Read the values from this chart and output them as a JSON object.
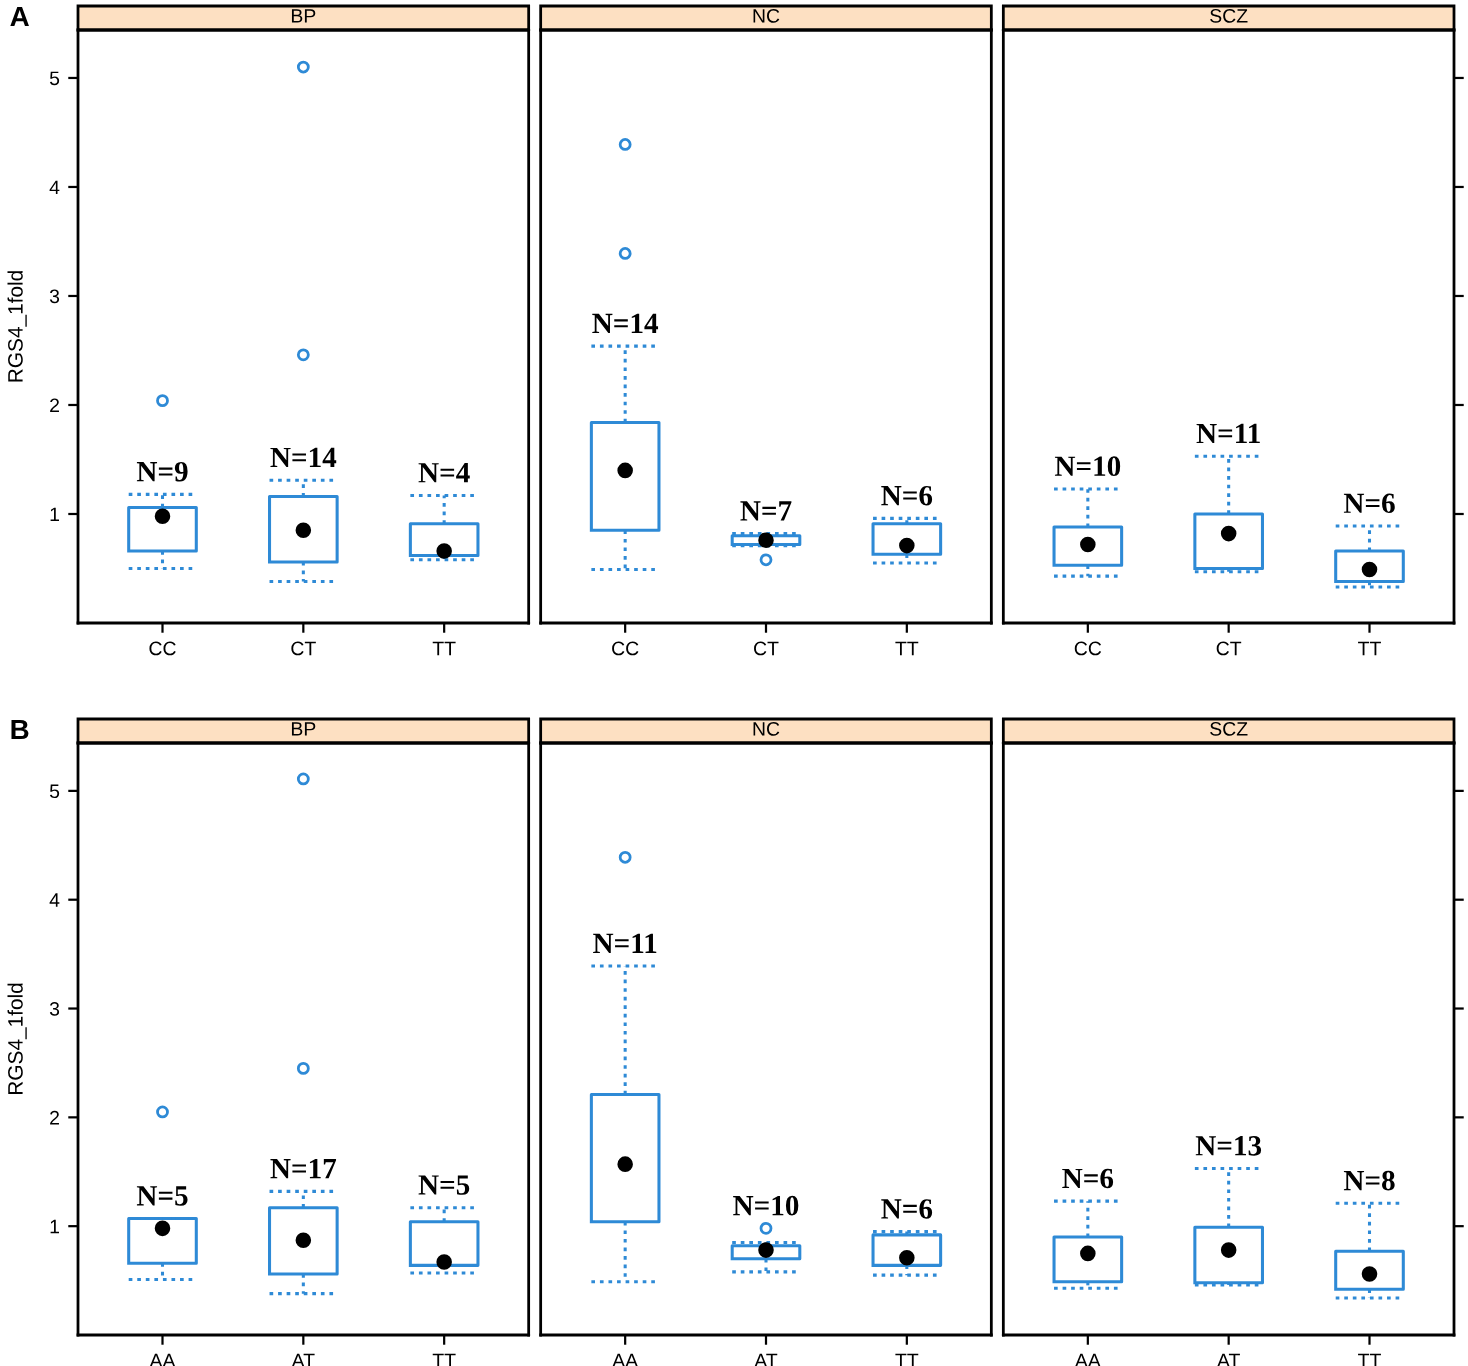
{
  "chart_data": [
    {
      "type": "box",
      "title": "BP",
      "ylabel": "RGS4_1fold",
      "categories": [
        "CC",
        "CT",
        "TT"
      ],
      "ylim": [
        0.0,
        5.44
      ],
      "yticks": [
        1,
        2,
        3,
        4,
        5
      ],
      "color": "#2e8ad6",
      "annotations": [
        "A",
        {
          "text": "N=9",
          "x": "CC",
          "y": 1.18
        },
        {
          "text": "N=14",
          "x": "CT",
          "y": 1.31
        },
        {
          "text": "N=4",
          "x": "TT",
          "y": 1.17
        }
      ],
      "boxes": [
        {
          "low": 0.5,
          "q1": 0.66,
          "median": 0.98,
          "q3": 1.06,
          "high": 1.18,
          "outliers": [
            2.04
          ]
        },
        {
          "low": 0.38,
          "q1": 0.56,
          "median": 0.85,
          "q3": 1.16,
          "high": 1.31,
          "outliers": [
            2.46,
            5.1
          ]
        },
        {
          "low": 0.58,
          "q1": 0.62,
          "median": 0.66,
          "q3": 0.91,
          "high": 1.17
        }
      ]
    },
    {
      "type": "box",
      "title": "NC",
      "categories": [
        "CC",
        "CT",
        "TT"
      ],
      "ylim": [
        0.0,
        5.44
      ],
      "yticks": [
        1,
        2,
        3,
        4,
        5
      ],
      "tick_labels": "x",
      "color": "#2e8ad6",
      "annotations": [
        {
          "text": "N=14",
          "x": "CC",
          "y": 2.54
        },
        {
          "text": "N=7",
          "x": "CT",
          "y": 0.82
        },
        {
          "text": "N=6",
          "x": "TT",
          "y": 0.96
        }
      ],
      "boxes": [
        {
          "low": 0.49,
          "q1": 0.85,
          "median": 1.4,
          "q3": 1.84,
          "high": 2.54,
          "outliers": [
            3.39,
            4.39
          ]
        },
        {
          "low": 0.71,
          "q1": 0.72,
          "median": 0.76,
          "q3": 0.8,
          "high": 0.82,
          "outliers": [
            0.58
          ]
        },
        {
          "low": 0.55,
          "q1": 0.63,
          "median": 0.71,
          "q3": 0.91,
          "high": 0.96
        }
      ]
    },
    {
      "type": "box",
      "title": "SCZ",
      "categories": [
        "CC",
        "CT",
        "TT"
      ],
      "ylim": [
        0.0,
        5.44
      ],
      "yticks": [
        1,
        2,
        3,
        4,
        5
      ],
      "tick_labels": "x",
      "color": "#2e8ad6",
      "annotations": [
        {
          "text": "N=10",
          "x": "CC",
          "y": 1.23
        },
        {
          "text": "N=11",
          "x": "CT",
          "y": 1.53
        },
        {
          "text": "N=6",
          "x": "TT",
          "y": 0.89
        }
      ],
      "boxes": [
        {
          "low": 0.43,
          "q1": 0.53,
          "median": 0.72,
          "q3": 0.88,
          "high": 1.23
        },
        {
          "low": 0.47,
          "q1": 0.5,
          "median": 0.82,
          "q3": 1.0,
          "high": 1.53
        },
        {
          "low": 0.33,
          "q1": 0.38,
          "median": 0.49,
          "q3": 0.66,
          "high": 0.89
        }
      ]
    },
    {
      "type": "box",
      "title": "BP",
      "ylabel": "RGS4_1fold",
      "categories": [
        "AA",
        "AT",
        "TT"
      ],
      "ylim": [
        0.0,
        5.44
      ],
      "yticks": [
        1,
        2,
        3,
        4,
        5
      ],
      "color": "#2e8ad6",
      "annotations": [
        "B",
        {
          "text": "N=5",
          "x": "AA",
          "y": 1.07
        },
        {
          "text": "N=17",
          "x": "AT",
          "y": 1.32
        },
        {
          "text": "N=5",
          "x": "TT",
          "y": 1.17
        }
      ],
      "boxes": [
        {
          "low": 0.51,
          "q1": 0.66,
          "median": 0.98,
          "q3": 1.07,
          "high": 1.07,
          "outliers": [
            2.05
          ]
        },
        {
          "low": 0.38,
          "q1": 0.56,
          "median": 0.87,
          "q3": 1.17,
          "high": 1.32,
          "outliers": [
            2.45,
            5.11
          ]
        },
        {
          "low": 0.57,
          "q1": 0.64,
          "median": 0.67,
          "q3": 1.04,
          "high": 1.17
        }
      ]
    },
    {
      "type": "box",
      "title": "NC",
      "categories": [
        "AA",
        "AT",
        "TT"
      ],
      "ylim": [
        0.0,
        5.44
      ],
      "yticks": [
        1,
        2,
        3,
        4,
        5
      ],
      "tick_labels": "x",
      "color": "#2e8ad6",
      "annotations": [
        {
          "text": "N=11",
          "x": "AA",
          "y": 3.39
        },
        {
          "text": "N=10",
          "x": "AT",
          "y": 0.85
        },
        {
          "text": "N=6",
          "x": "TT",
          "y": 0.95
        }
      ],
      "boxes": [
        {
          "low": 0.49,
          "q1": 1.04,
          "median": 1.57,
          "q3": 2.21,
          "high": 3.39,
          "outliers": [
            4.39
          ]
        },
        {
          "low": 0.58,
          "q1": 0.7,
          "median": 0.78,
          "q3": 0.82,
          "high": 0.85,
          "outliers": [
            0.98
          ]
        },
        {
          "low": 0.55,
          "q1": 0.64,
          "median": 0.71,
          "q3": 0.92,
          "high": 0.95
        }
      ]
    },
    {
      "type": "box",
      "title": "SCZ",
      "categories": [
        "AA",
        "AT",
        "TT"
      ],
      "ylim": [
        0.0,
        5.44
      ],
      "yticks": [
        1,
        2,
        3,
        4,
        5
      ],
      "tick_labels": "x",
      "color": "#2e8ad6",
      "annotations": [
        {
          "text": "N=6",
          "x": "AA",
          "y": 1.23
        },
        {
          "text": "N=13",
          "x": "AT",
          "y": 1.53
        },
        {
          "text": "N=8",
          "x": "TT",
          "y": 1.21
        }
      ],
      "boxes": [
        {
          "low": 0.43,
          "q1": 0.49,
          "median": 0.75,
          "q3": 0.9,
          "high": 1.23
        },
        {
          "low": 0.46,
          "q1": 0.48,
          "median": 0.78,
          "q3": 0.99,
          "high": 1.53
        },
        {
          "low": 0.34,
          "q1": 0.42,
          "median": 0.56,
          "q3": 0.77,
          "high": 1.21
        }
      ]
    }
  ]
}
